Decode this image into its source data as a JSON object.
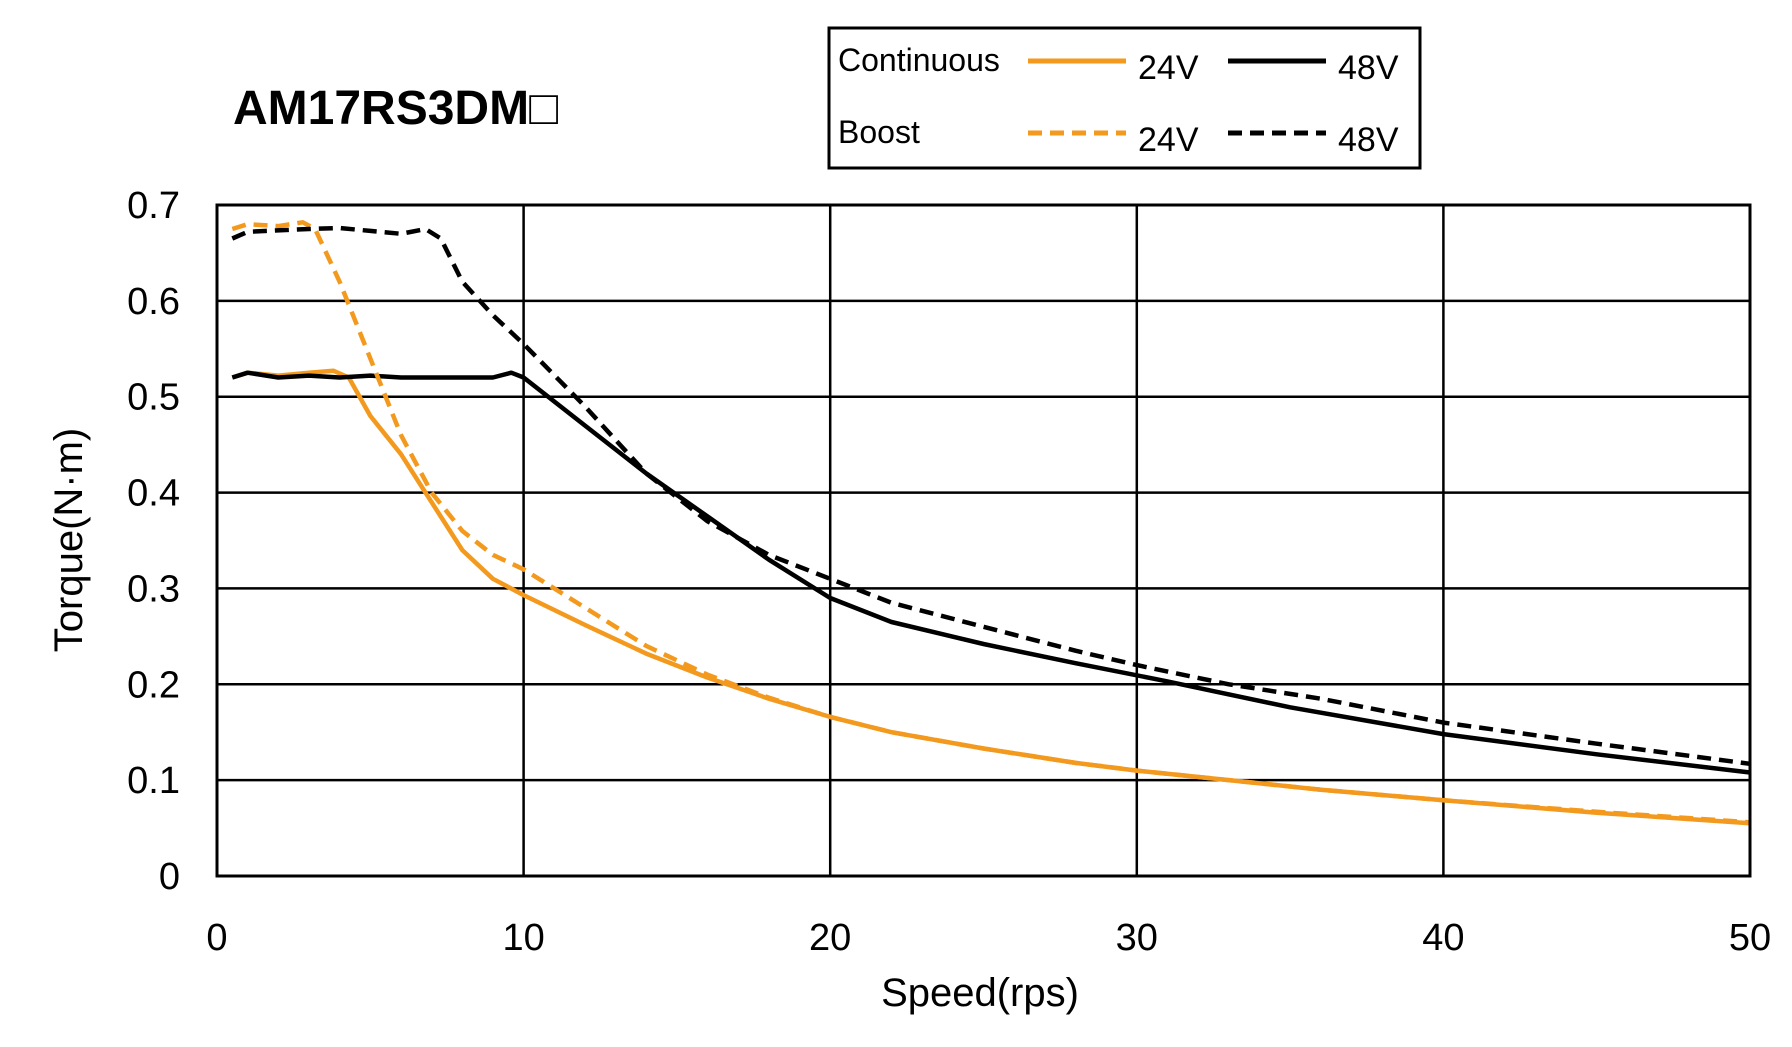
{
  "chart_data": {
    "type": "line",
    "title": "AM17RS3DM□",
    "xlabel": "Speed(rps)",
    "ylabel": "Torque(N·m)",
    "xlim": [
      0,
      50
    ],
    "ylim": [
      0,
      0.7
    ],
    "xticks": [
      0,
      10,
      20,
      30,
      40,
      50
    ],
    "yticks": [
      0,
      0.1,
      0.2,
      0.3,
      0.4,
      0.5,
      0.6,
      0.7
    ],
    "grid": true,
    "legend": {
      "placement": "top",
      "row_labels": [
        "Continuous",
        "Boost"
      ]
    },
    "series": [
      {
        "name": "24V",
        "group": "Continuous",
        "color": "#F39A1E",
        "dash": "solid",
        "points": [
          [
            0.5,
            0.52
          ],
          [
            1,
            0.525
          ],
          [
            2,
            0.522
          ],
          [
            3,
            0.525
          ],
          [
            3.8,
            0.527
          ],
          [
            4.3,
            0.52
          ],
          [
            5,
            0.48
          ],
          [
            6,
            0.44
          ],
          [
            7,
            0.39
          ],
          [
            8,
            0.34
          ],
          [
            9,
            0.31
          ],
          [
            10,
            0.293
          ],
          [
            12,
            0.262
          ],
          [
            14,
            0.232
          ],
          [
            16,
            0.207
          ],
          [
            18,
            0.185
          ],
          [
            20,
            0.166
          ],
          [
            22,
            0.15
          ],
          [
            25,
            0.133
          ],
          [
            28,
            0.118
          ],
          [
            30,
            0.11
          ],
          [
            33,
            0.1
          ],
          [
            36,
            0.09
          ],
          [
            40,
            0.079
          ],
          [
            45,
            0.066
          ],
          [
            50,
            0.055
          ]
        ]
      },
      {
        "name": "48V",
        "group": "Continuous",
        "color": "#000000",
        "dash": "solid",
        "points": [
          [
            0.5,
            0.52
          ],
          [
            1,
            0.525
          ],
          [
            2,
            0.52
          ],
          [
            3,
            0.522
          ],
          [
            4,
            0.52
          ],
          [
            5,
            0.522
          ],
          [
            6,
            0.52
          ],
          [
            8,
            0.52
          ],
          [
            9,
            0.52
          ],
          [
            9.6,
            0.525
          ],
          [
            10,
            0.52
          ],
          [
            12,
            0.47
          ],
          [
            14,
            0.42
          ],
          [
            16,
            0.375
          ],
          [
            18,
            0.33
          ],
          [
            20,
            0.29
          ],
          [
            22,
            0.265
          ],
          [
            25,
            0.242
          ],
          [
            28,
            0.222
          ],
          [
            31,
            0.203
          ],
          [
            35,
            0.176
          ],
          [
            40,
            0.148
          ],
          [
            45,
            0.127
          ],
          [
            50,
            0.108
          ]
        ]
      },
      {
        "name": "24V",
        "group": "Boost",
        "color": "#F39A1E",
        "dash": "dashed",
        "points": [
          [
            0.5,
            0.675
          ],
          [
            1,
            0.68
          ],
          [
            2,
            0.678
          ],
          [
            2.8,
            0.682
          ],
          [
            3.2,
            0.675
          ],
          [
            4,
            0.62
          ],
          [
            5,
            0.54
          ],
          [
            6,
            0.46
          ],
          [
            7,
            0.4
          ],
          [
            8,
            0.36
          ],
          [
            9,
            0.335
          ],
          [
            10,
            0.32
          ],
          [
            12,
            0.28
          ],
          [
            14,
            0.24
          ],
          [
            16,
            0.21
          ],
          [
            18,
            0.186
          ],
          [
            20,
            0.166
          ],
          [
            22,
            0.15
          ],
          [
            25,
            0.133
          ],
          [
            28,
            0.118
          ],
          [
            30,
            0.11
          ],
          [
            33,
            0.1
          ],
          [
            36,
            0.09
          ],
          [
            40,
            0.079
          ],
          [
            45,
            0.067
          ],
          [
            50,
            0.056
          ]
        ]
      },
      {
        "name": "48V",
        "group": "Boost",
        "color": "#000000",
        "dash": "dashed",
        "points": [
          [
            0.5,
            0.665
          ],
          [
            1,
            0.672
          ],
          [
            3,
            0.675
          ],
          [
            4,
            0.676
          ],
          [
            5,
            0.673
          ],
          [
            6,
            0.67
          ],
          [
            6.8,
            0.675
          ],
          [
            7.3,
            0.665
          ],
          [
            8,
            0.62
          ],
          [
            9,
            0.585
          ],
          [
            10,
            0.555
          ],
          [
            12,
            0.49
          ],
          [
            14,
            0.42
          ],
          [
            16,
            0.37
          ],
          [
            18,
            0.335
          ],
          [
            20,
            0.31
          ],
          [
            22,
            0.285
          ],
          [
            25,
            0.26
          ],
          [
            28,
            0.235
          ],
          [
            30,
            0.22
          ],
          [
            33,
            0.2
          ],
          [
            36,
            0.185
          ],
          [
            40,
            0.16
          ],
          [
            45,
            0.138
          ],
          [
            50,
            0.117
          ]
        ]
      }
    ]
  }
}
